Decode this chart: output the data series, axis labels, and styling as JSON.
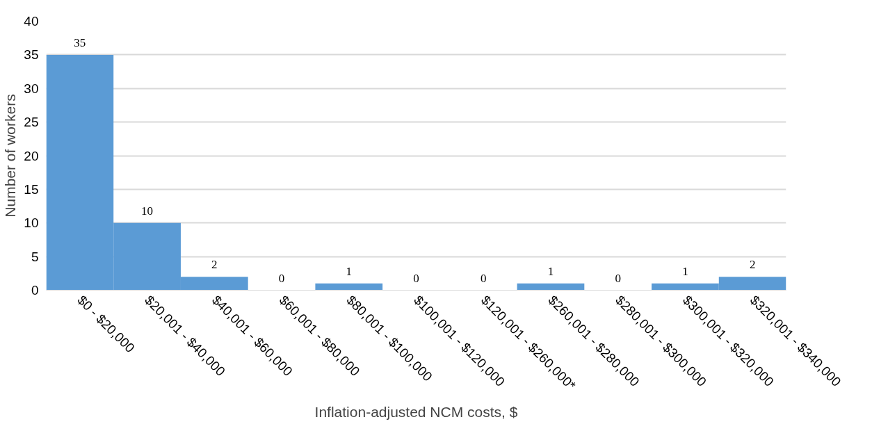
{
  "chart_data": {
    "type": "bar",
    "xlabel": "Inflation-adjusted NCM costs, $",
    "ylabel": "Number of workers",
    "categories": [
      "$0 - $20,000",
      "$20,001 - $40,000",
      "$40,001 - $60,000",
      "$60,001 - $80,000",
      "$80,001 - $100,000",
      "$100,001 - $120,000",
      "$120,001 - $260,000*",
      "$260,001 - $280,000",
      "$280,001 - $300,000",
      "$300,001 - $320,000",
      "$320,001 - $340,000"
    ],
    "values": [
      35,
      10,
      2,
      0,
      1,
      0,
      0,
      1,
      0,
      1,
      2
    ],
    "color": "#5b9bd5",
    "ylim": [
      0,
      40
    ],
    "yticks": [
      0,
      5,
      10,
      15,
      20,
      25,
      30,
      35,
      40
    ],
    "grid": "y",
    "data_labels": true
  }
}
